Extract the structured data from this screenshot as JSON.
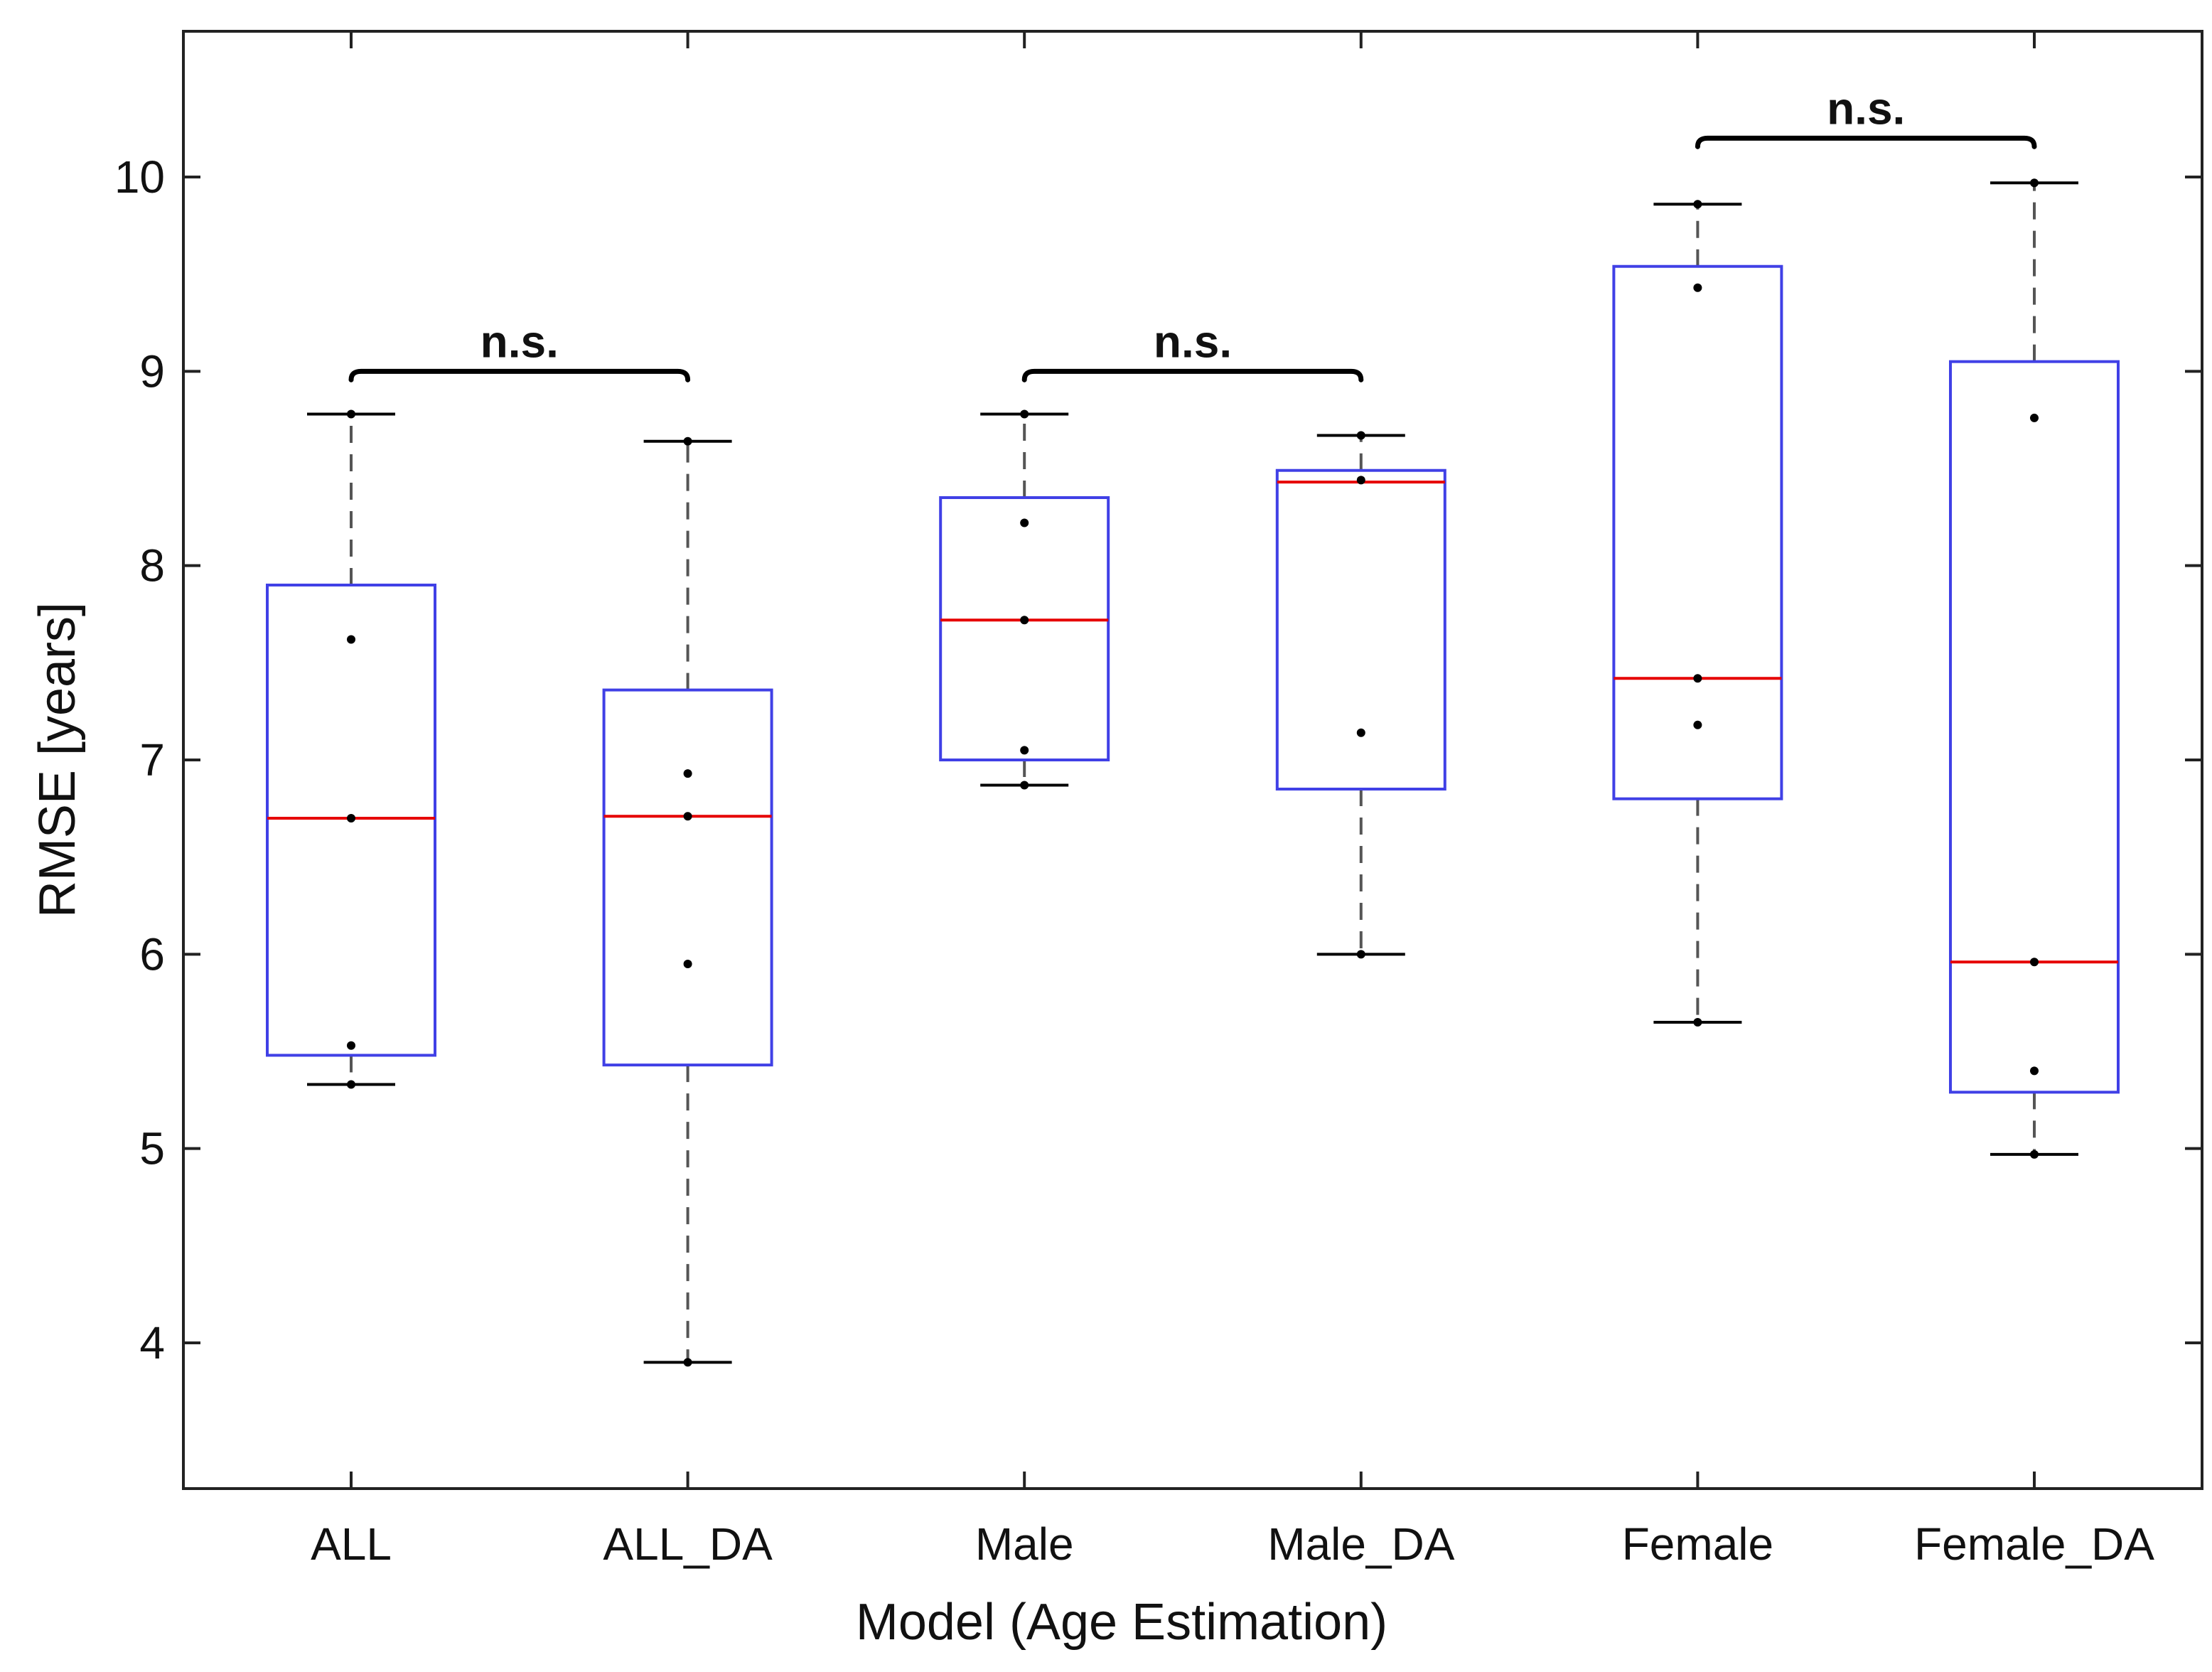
{
  "chart_data": {
    "type": "boxplot",
    "title": "",
    "xlabel": "Model (Age Estimation)",
    "ylabel": "RMSE [years]",
    "ylim": [
      3.25,
      10.75
    ],
    "yticks": [
      4,
      5,
      6,
      7,
      8,
      9,
      10
    ],
    "ytick_labels": [
      "4",
      "5",
      "6",
      "7",
      "8",
      "9",
      "10"
    ],
    "grid": false,
    "categories": [
      "ALL",
      "ALL_DA",
      "Male",
      "Male_DA",
      "Female",
      "Female_DA"
    ],
    "boxes": [
      {
        "category": "ALL",
        "whisker_low": 5.33,
        "q1": 5.48,
        "median": 6.7,
        "q3": 7.9,
        "whisker_high": 8.78,
        "points": [
          5.33,
          5.53,
          6.7,
          7.62,
          8.78
        ]
      },
      {
        "category": "ALL_DA",
        "whisker_low": 3.9,
        "q1": 5.43,
        "median": 6.71,
        "q3": 7.36,
        "whisker_high": 8.64,
        "points": [
          3.9,
          5.95,
          6.71,
          6.93,
          8.64
        ]
      },
      {
        "category": "Male",
        "whisker_low": 6.87,
        "q1": 7.0,
        "median": 7.72,
        "q3": 8.35,
        "whisker_high": 8.78,
        "points": [
          6.87,
          7.05,
          7.72,
          8.22,
          8.78
        ]
      },
      {
        "category": "Male_DA",
        "whisker_low": 6.0,
        "q1": 6.85,
        "median": 8.43,
        "q3": 8.49,
        "whisker_high": 8.67,
        "points": [
          6.0,
          7.14,
          8.44,
          8.67
        ]
      },
      {
        "category": "Female",
        "whisker_low": 5.65,
        "q1": 6.8,
        "median": 7.42,
        "q3": 9.54,
        "whisker_high": 9.86,
        "points": [
          5.65,
          7.18,
          7.42,
          9.43,
          9.86
        ]
      },
      {
        "category": "Female_DA",
        "whisker_low": 4.97,
        "q1": 5.29,
        "median": 5.96,
        "q3": 9.05,
        "whisker_high": 9.97,
        "points": [
          4.97,
          5.4,
          5.96,
          8.76,
          9.97
        ]
      }
    ],
    "significance": [
      {
        "from": 0,
        "to": 1,
        "y": 9.0,
        "label": "n.s."
      },
      {
        "from": 2,
        "to": 3,
        "y": 9.0,
        "label": "n.s."
      },
      {
        "from": 4,
        "to": 5,
        "y": 10.2,
        "label": "n.s."
      }
    ],
    "colors": {
      "box": "#4040e6",
      "median": "#e60000",
      "whisker": "#555555",
      "point": "#000000",
      "axis": "#222222",
      "bracket": "#000000"
    }
  }
}
